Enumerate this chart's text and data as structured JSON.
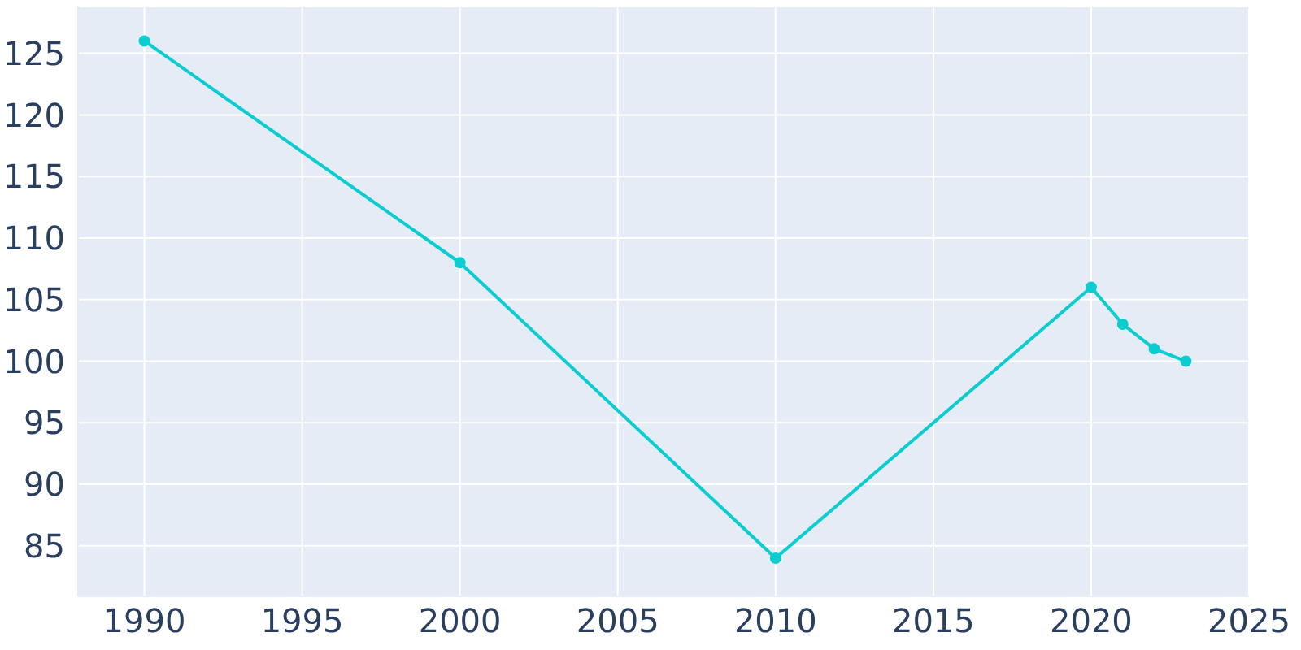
{
  "chart_data": {
    "type": "line",
    "x": [
      1990,
      2000,
      2010,
      2020,
      2021,
      2022,
      2023
    ],
    "series": [
      {
        "color": "#0bcdd0",
        "values": [
          126,
          108,
          84,
          106,
          103,
          101,
          100
        ]
      }
    ],
    "xlim": [
      1987.9,
      2025
    ],
    "xticks": [
      1990,
      1995,
      2000,
      2005,
      2010,
      2015,
      2020,
      2025
    ],
    "ylim": [
      80.9,
      128.8
    ],
    "yticks": [
      85,
      90,
      95,
      100,
      105,
      110,
      115,
      120,
      125
    ],
    "grid": true,
    "marker": "circle",
    "line_style": "solid"
  }
}
